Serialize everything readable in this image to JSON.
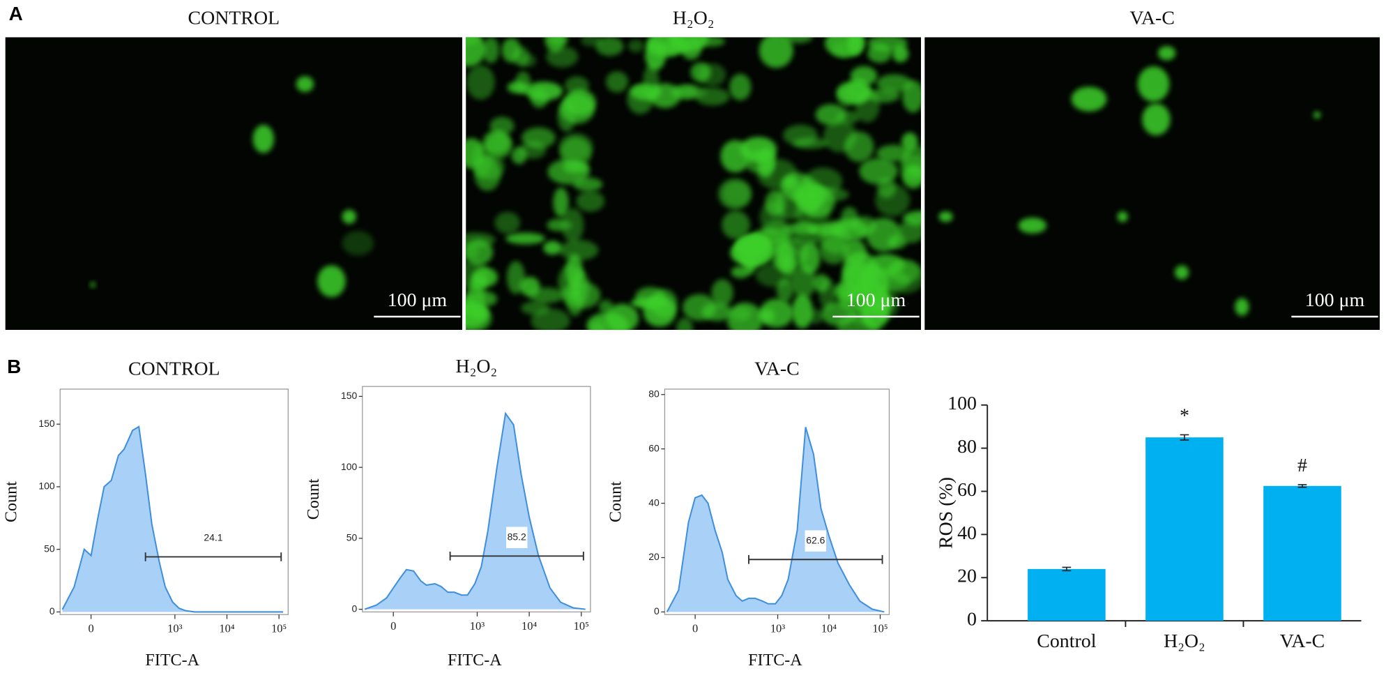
{
  "panel_labels": [
    "A",
    "B"
  ],
  "images": [
    {
      "title": "CONTROL",
      "scale_bar": "100 μm"
    },
    {
      "title": "H₂O₂",
      "scale_bar": "100 μm"
    },
    {
      "title": "VA-C",
      "scale_bar": "100 μm"
    }
  ],
  "chart_data": [
    {
      "type": "area",
      "title": "CONTROL",
      "x_label": "FITC-A",
      "y_label": "Count",
      "xscale": "biexponential",
      "x": [
        -80,
        -40,
        -15,
        0,
        15,
        30,
        50,
        75,
        100,
        150,
        200,
        270,
        360,
        500,
        650,
        900,
        1200,
        1600,
        2400,
        3500,
        5000,
        7000,
        10000,
        15000,
        25000,
        40000,
        70000,
        120000
      ],
      "values": [
        2,
        20,
        50,
        45,
        75,
        100,
        105,
        125,
        130,
        145,
        148,
        110,
        70,
        40,
        20,
        8,
        3,
        1,
        0,
        0,
        0,
        0,
        0,
        0,
        0,
        0,
        0,
        0
      ],
      "color": "#3f8fdc",
      "fill": "#a9d0f6",
      "xlim": [
        -90,
        150000
      ],
      "ylim": [
        0,
        178
      ],
      "xticks": [
        0,
        {
          "value": 1000,
          "label": "10³"
        },
        {
          "value": 10000,
          "label": "10⁴"
        },
        {
          "value": 100000,
          "label": "10⁵"
        }
      ],
      "yticks": [
        0,
        50,
        100,
        150
      ],
      "gate": {
        "x": [
          270,
          110000
        ],
        "y": 44,
        "value": 24.1
      }
    },
    {
      "type": "area",
      "title": "H₂O₂",
      "x_label": "FITC-A",
      "y_label": "Count",
      "xscale": "biexponential",
      "x": [
        -80,
        -40,
        -15,
        0,
        15,
        30,
        50,
        75,
        100,
        150,
        200,
        270,
        360,
        500,
        650,
        900,
        1200,
        1600,
        2400,
        3500,
        5000,
        7000,
        10000,
        15000,
        25000,
        40000,
        70000,
        120000
      ],
      "values": [
        0,
        3,
        8,
        15,
        22,
        28,
        27,
        20,
        17,
        18,
        16,
        12,
        12,
        10,
        10,
        18,
        30,
        55,
        100,
        138,
        130,
        95,
        65,
        38,
        15,
        5,
        1,
        0
      ],
      "color": "#3f8fdc",
      "fill": "#a9d0f6",
      "xlim": [
        -90,
        150000
      ],
      "ylim": [
        0,
        157
      ],
      "xticks": [
        0,
        {
          "value": 1000,
          "label": "10³"
        },
        {
          "value": 10000,
          "label": "10⁴"
        },
        {
          "value": 100000,
          "label": "10⁵"
        }
      ],
      "yticks": [
        0,
        50,
        100,
        150
      ],
      "gate": {
        "x": [
          300,
          110000
        ],
        "y": 37.5,
        "value": 85.2
      }
    },
    {
      "type": "area",
      "title": "VA-C",
      "x_label": "FITC-A",
      "y_label": "Count",
      "xscale": "biexponential",
      "x": [
        -80,
        -40,
        -15,
        0,
        15,
        30,
        50,
        75,
        100,
        150,
        200,
        270,
        360,
        500,
        650,
        900,
        1200,
        1600,
        2400,
        3500,
        5000,
        7000,
        10000,
        15000,
        25000,
        40000,
        70000,
        120000
      ],
      "values": [
        0,
        8,
        33,
        42,
        43,
        40,
        30,
        22,
        12,
        6,
        4,
        5,
        5,
        4,
        3,
        3,
        6,
        12,
        30,
        68,
        58,
        38,
        28,
        18,
        10,
        4,
        1,
        0
      ],
      "color": "#3f8fdc",
      "fill": "#a9d0f6",
      "xlim": [
        -90,
        150000
      ],
      "ylim": [
        0,
        82
      ],
      "xticks": [
        0,
        {
          "value": 1000,
          "label": "10³"
        },
        {
          "value": 10000,
          "label": "10⁴"
        },
        {
          "value": 100000,
          "label": "10⁵"
        }
      ],
      "yticks": [
        0,
        20,
        40,
        60,
        80
      ],
      "gate": {
        "x": [
          270,
          110000
        ],
        "y": 19.3,
        "value": 62.6
      }
    },
    {
      "type": "bar",
      "y_label": "ROS (%)",
      "categories": [
        "Control",
        "H₂O₂",
        "VA-C"
      ],
      "values": [
        24,
        85,
        62.5
      ],
      "errors": [
        0.8,
        1.2,
        0.6
      ],
      "color": "#00b0f0",
      "ylim": [
        0,
        100
      ],
      "yticks": [
        0,
        20,
        40,
        60,
        80,
        100
      ],
      "annotations": [
        {
          "text": "*",
          "x": "H₂O₂"
        },
        {
          "text": "#",
          "x": "VA-C"
        }
      ]
    }
  ]
}
